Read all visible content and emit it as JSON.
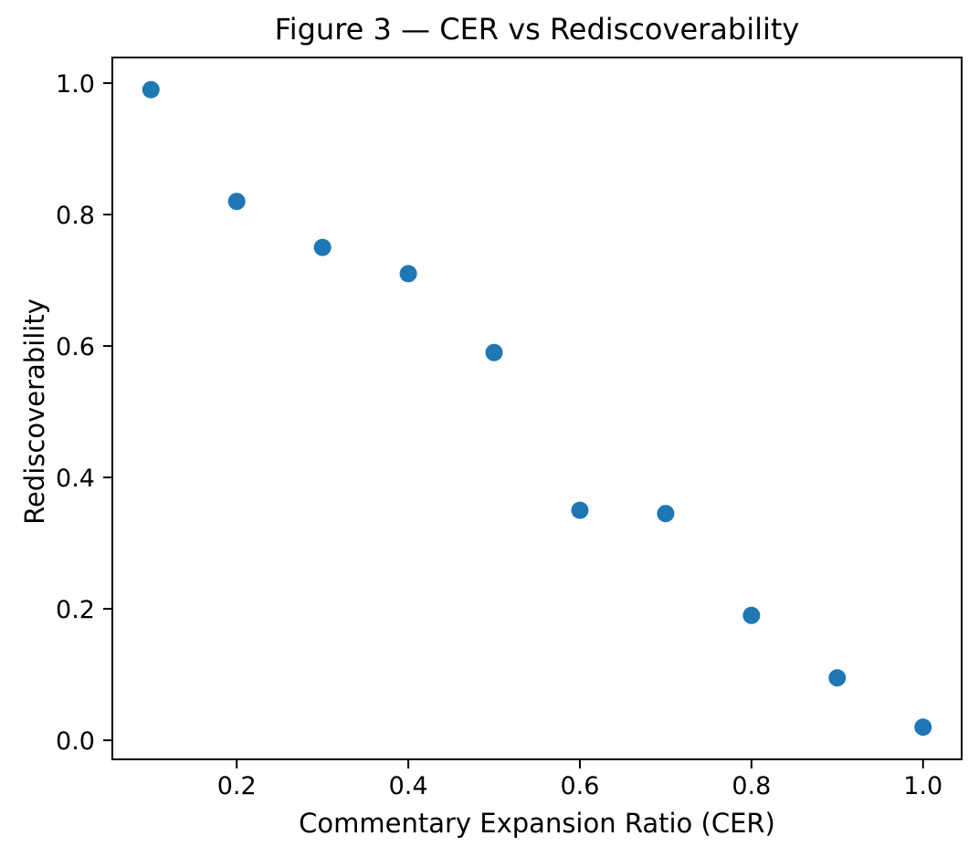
{
  "figure": {
    "background_color": "#ffffff",
    "axis_color": "#000000",
    "text_color": "#000000"
  },
  "chart_data": {
    "type": "scatter",
    "title": "Figure 3 — CER vs Rediscoverability",
    "xlabel": "Commentary Expansion Ratio (CER)",
    "ylabel": "Rediscoverability",
    "x": [
      0.1,
      0.2,
      0.3,
      0.4,
      0.5,
      0.6,
      0.7,
      0.8,
      0.9,
      1.0
    ],
    "y": [
      0.99,
      0.82,
      0.75,
      0.71,
      0.59,
      0.35,
      0.345,
      0.19,
      0.095,
      0.02
    ],
    "xlim": [
      0.055,
      1.045
    ],
    "ylim": [
      -0.029,
      1.039
    ],
    "xticks": {
      "values": [
        0.2,
        0.4,
        0.6,
        0.8,
        1.0
      ],
      "labels": [
        "0.2",
        "0.4",
        "0.6",
        "0.8",
        "1.0"
      ]
    },
    "yticks": {
      "values": [
        0.0,
        0.2,
        0.4,
        0.6,
        0.8,
        1.0
      ],
      "labels": [
        "0.0",
        "0.2",
        "0.4",
        "0.6",
        "0.8",
        "1.0"
      ]
    },
    "grid": false,
    "legend": "none",
    "marker": {
      "shape": "circle",
      "color": "#1f77b4",
      "radius_px": 9.5
    }
  }
}
